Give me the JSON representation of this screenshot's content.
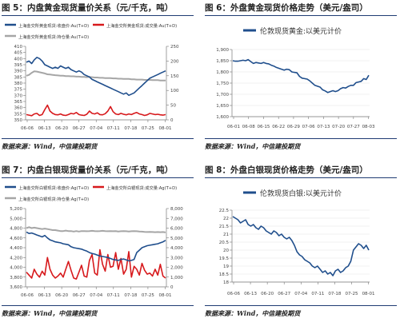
{
  "panels": [
    {
      "title": "图 5：内盘黄金现货量价关系（元/千克，吨）",
      "source": "数据来源：Wind，中信建投期货"
    },
    {
      "title": "图 6：外盘黄金现货价格走势（美元/盎司）",
      "source": "数据来源：Wind，中信建投期货"
    },
    {
      "title": "图 7：内盘白银现货量价关系（元/千克，吨）",
      "source": "数据来源：Wind，中信建投期货"
    },
    {
      "title": "图 8：外盘白银现货价格走势（美元/盎司）",
      "source": "数据来源：Wind，中信建投期货"
    }
  ],
  "colors": {
    "blue": "#1f4e8c",
    "red": "#d7191c",
    "gray": "#a6a6a6",
    "rule": "#1f3b73"
  },
  "chart_data": [
    {
      "type": "line",
      "x_ticks": [
        "06-06",
        "06-13",
        "06-20",
        "06-27",
        "07-04",
        "07-11",
        "07-18",
        "07-25",
        "08-01"
      ],
      "legend": [
        "上海金交所黄金现货:收盘价:Au(T+D)",
        "上海金交所黄金现货:成交量:Au(T+D)",
        "上海金交所黄金现货:持仓量:Au(T+D)"
      ],
      "y_left_ticks": [
        "350",
        "355",
        "360",
        "365",
        "370",
        "375",
        "380",
        "385",
        "390",
        "395",
        "400",
        "405",
        "410"
      ],
      "y_right_ticks": [
        "0",
        "50",
        "100",
        "150",
        "200",
        "250"
      ],
      "ylim": [
        350,
        410
      ],
      "y2lim": [
        0,
        250
      ],
      "series": [
        {
          "name": "上海金交所黄金现货:收盘价:Au(T+D)",
          "axis": "left",
          "color": "blue",
          "values": [
            397,
            398,
            396,
            399,
            401,
            400,
            398,
            395,
            394,
            393,
            392,
            393,
            392,
            394,
            393,
            392,
            393,
            391,
            390,
            389,
            390,
            389,
            387,
            386,
            385,
            383,
            382,
            381,
            380,
            379,
            378,
            377,
            376,
            375,
            374,
            373,
            372,
            371,
            372,
            370,
            371,
            372,
            374,
            376,
            378,
            380,
            382,
            384,
            385,
            386,
            387,
            388,
            389,
            390
          ]
        },
        {
          "name": "上海金交所黄金现货:成交量:Au(T+D)",
          "axis": "right",
          "color": "red",
          "values": [
            18,
            16,
            14,
            20,
            22,
            15,
            18,
            35,
            50,
            30,
            22,
            18,
            17,
            20,
            16,
            15,
            18,
            22,
            20,
            25,
            18,
            16,
            15,
            19,
            30,
            22,
            20,
            24,
            18,
            17,
            21,
            30,
            45,
            28,
            20,
            18,
            22,
            19,
            17,
            20,
            18,
            22,
            25,
            20,
            18,
            15,
            17,
            22,
            20,
            18,
            19,
            17,
            16,
            18
          ]
        },
        {
          "name": "上海金交所黄金现货:持仓量:Au(T+D)",
          "axis": "right",
          "color": "gray",
          "values": [
            150,
            153,
            160,
            165,
            164,
            162,
            160,
            158,
            155,
            154,
            153,
            152,
            151,
            150,
            150,
            149,
            149,
            148,
            148,
            147,
            147,
            146,
            146,
            145,
            146,
            145,
            144,
            144,
            143,
            143,
            142,
            142,
            142,
            141,
            141,
            140,
            140,
            139,
            139,
            139,
            138,
            138,
            137,
            137,
            137,
            136,
            136,
            136,
            135,
            135,
            135,
            134,
            134,
            134
          ]
        }
      ]
    },
    {
      "type": "line",
      "x_ticks": [
        "06-01",
        "06-08",
        "06-15",
        "06-22",
        "06-29",
        "07-06",
        "07-13",
        "07-20",
        "07-27",
        "08-03"
      ],
      "legend": [
        "伦敦现货黄金:以美元计价"
      ],
      "y_ticks": [
        "1,600",
        "1,650",
        "1,700",
        "1,750",
        "1,800",
        "1,850",
        "1,900"
      ],
      "ylim": [
        1600,
        1900
      ],
      "series": [
        {
          "name": "伦敦现货黄金:以美元计价",
          "color": "blue",
          "values": [
            1850,
            1848,
            1848,
            1850,
            1852,
            1850,
            1855,
            1846,
            1838,
            1842,
            1840,
            1838,
            1842,
            1838,
            1836,
            1830,
            1826,
            1820,
            1816,
            1812,
            1808,
            1812,
            1810,
            1800,
            1798,
            1796,
            1780,
            1772,
            1770,
            1768,
            1760,
            1750,
            1740,
            1736,
            1732,
            1720,
            1715,
            1708,
            1712,
            1716,
            1712,
            1716,
            1725,
            1730,
            1728,
            1735,
            1740,
            1740,
            1752,
            1755,
            1758,
            1770,
            1766,
            1785
          ]
        }
      ]
    },
    {
      "type": "line",
      "x_ticks": [
        "06-06",
        "06-13",
        "06-20",
        "06-27",
        "07-04",
        "07-11",
        "07-18",
        "07-25",
        "08-01"
      ],
      "legend": [
        "上海金交所白银现货:收盘价:Ag(T+D)",
        "上海金交所白银现货:成交量:Ag(T+D)",
        "上海金交所白银现货:持仓量:Ag(T+D)"
      ],
      "y_left_ticks": [
        "3,600",
        "3,800",
        "4,000",
        "4,200",
        "4,400",
        "4,600",
        "4,800",
        "5,000",
        "5,200"
      ],
      "y_right_ticks": [
        "0",
        "1,000",
        "2,000",
        "3,000",
        "4,000",
        "5,000",
        "6,000",
        "7,000",
        "8,000"
      ],
      "ylim": [
        3600,
        5200
      ],
      "y2lim": [
        0,
        8000
      ],
      "series": [
        {
          "name": "上海金交所白银现货:收盘价:Ag(T+D)",
          "axis": "left",
          "color": "blue",
          "values": [
            4720,
            4690,
            4700,
            4680,
            4660,
            4640,
            4620,
            4650,
            4600,
            4560,
            4540,
            4520,
            4510,
            4500,
            4480,
            4470,
            4460,
            4420,
            4400,
            4390,
            4380,
            4370,
            4350,
            4330,
            4300,
            4280,
            4270,
            4250,
            4230,
            4220,
            4210,
            4200,
            4180,
            4160,
            4150,
            4140,
            4160,
            4170,
            4150,
            4130,
            4140,
            4160,
            4300,
            4350,
            4400,
            4420,
            4440,
            4450,
            4460,
            4470,
            4480,
            4500,
            4520,
            4550
          ]
        },
        {
          "name": "上海金交所白银现货:成交量:Ag(T+D)",
          "axis": "right",
          "color": "red",
          "values": [
            1500,
            1200,
            900,
            1800,
            1300,
            1000,
            1600,
            1200,
            3000,
            1800,
            1200,
            900,
            1100,
            1400,
            1000,
            1800,
            2600,
            1700,
            900,
            800,
            1500,
            2200,
            1100,
            1000,
            2700,
            3300,
            1400,
            1200,
            3800,
            2300,
            1600,
            3300,
            2000,
            2100,
            3500,
            1800,
            2900,
            1300,
            1800,
            3600,
            1000,
            2100,
            1800,
            1200,
            2400,
            1700,
            1300,
            1400,
            1100,
            1800,
            1200,
            2300,
            1100,
            900
          ]
        },
        {
          "name": "上海金交所白银现货:持仓量:Ag(T+D)",
          "axis": "right",
          "color": "gray",
          "values": [
            6000,
            6100,
            6000,
            6050,
            6000,
            5950,
            5900,
            5950,
            5900,
            5850,
            5800,
            5800,
            5750,
            5700,
            5700,
            5750,
            5700,
            5700,
            5650,
            5700,
            5650,
            5700,
            5700,
            5680,
            5700,
            5720,
            5700,
            5680,
            5700,
            5720,
            5700,
            5680,
            5700,
            5680,
            5700,
            5660,
            5680,
            5700,
            5680,
            5660,
            5680,
            5700,
            5680,
            5660,
            5640,
            5620,
            5600,
            5620,
            5600,
            5580,
            5600,
            5580,
            5600,
            5560
          ]
        }
      ]
    },
    {
      "type": "line",
      "x_ticks": [
        "06-06",
        "06-13",
        "06-20",
        "06-27",
        "07-04",
        "07-11",
        "07-18",
        "07-25",
        "08-01"
      ],
      "legend": [
        "伦敦现货白银:以美元计价"
      ],
      "y_ticks": [
        "18",
        "18.5",
        "19",
        "19.5",
        "20",
        "20.5",
        "21",
        "21.5",
        "22",
        "22.5"
      ],
      "ylim": [
        18,
        22.5
      ],
      "series": [
        {
          "name": "伦敦现货白银:以美元计价",
          "color": "blue",
          "values": [
            22.1,
            22.0,
            21.9,
            21.7,
            21.8,
            21.9,
            21.6,
            21.5,
            21.6,
            21.4,
            21.3,
            21.5,
            21.4,
            21.2,
            21.1,
            21.0,
            21.2,
            21.1,
            20.9,
            21.0,
            20.8,
            20.7,
            20.8,
            20.6,
            20.3,
            19.9,
            19.7,
            19.6,
            19.4,
            19.3,
            19.2,
            19.0,
            18.9,
            19.0,
            18.8,
            18.6,
            18.7,
            18.5,
            18.6,
            18.4,
            18.7,
            18.8,
            18.6,
            18.7,
            18.9,
            19.0,
            19.3,
            20.0,
            20.2,
            20.4,
            20.3,
            20.1,
            20.3,
            20.0
          ]
        }
      ]
    }
  ]
}
